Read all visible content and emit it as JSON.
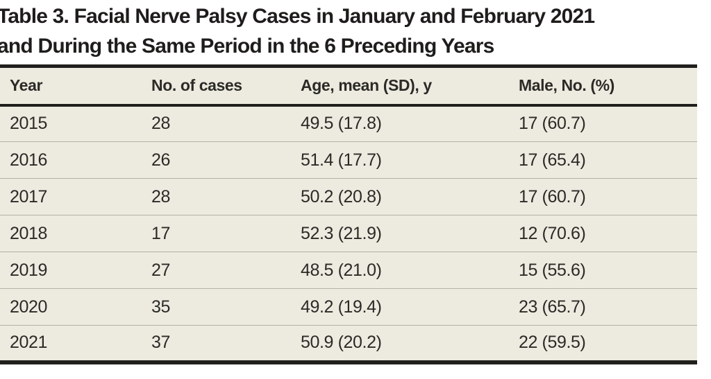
{
  "title": {
    "full": "Table 3. Facial Nerve Palsy Cases in January and February 2021 and During the Same Period in the 6 Preceding Years",
    "line1": "Table 3. Facial Nerve Palsy Cases in January and February 2021",
    "line2": "and During the Same Period in the 6 Preceding Years"
  },
  "table": {
    "columns": [
      "Year",
      "No. of cases",
      "Age, mean (SD), y",
      "Male, No. (%)"
    ],
    "rows": [
      [
        "2015",
        "28",
        "49.5 (17.8)",
        "17 (60.7)"
      ],
      [
        "2016",
        "26",
        "51.4 (17.7)",
        "17 (65.4)"
      ],
      [
        "2017",
        "28",
        "50.2 (20.8)",
        "17 (60.7)"
      ],
      [
        "2018",
        "17",
        "52.3 (21.9)",
        "12 (70.6)"
      ],
      [
        "2019",
        "27",
        "48.5 (21.0)",
        "15 (55.6)"
      ],
      [
        "2020",
        "35",
        "49.2 (19.4)",
        "23 (65.7)"
      ],
      [
        "2021",
        "37",
        "50.9 (20.2)",
        "22 (59.5)"
      ]
    ]
  },
  "colors": {
    "row_background": "#edebe0",
    "rule_black": "#201f1d",
    "row_separator": "#b2b1a7",
    "text": "#2b2a26",
    "page_background": "#ffffff"
  },
  "chart_data": {
    "type": "table",
    "title": "Table 3. Facial Nerve Palsy Cases in January and February 2021 and During the Same Period in the 6 Preceding Years",
    "columns": [
      "Year",
      "No. of cases",
      "Age, mean (SD), y",
      "Male, No. (%)"
    ],
    "rows": [
      [
        "2015",
        "28",
        "49.5 (17.8)",
        "17 (60.7)"
      ],
      [
        "2016",
        "26",
        "51.4 (17.7)",
        "17 (65.4)"
      ],
      [
        "2017",
        "28",
        "50.2 (20.8)",
        "17 (60.7)"
      ],
      [
        "2018",
        "17",
        "52.3 (21.9)",
        "12 (70.6)"
      ],
      [
        "2019",
        "27",
        "48.5 (21.0)",
        "15 (55.6)"
      ],
      [
        "2020",
        "35",
        "49.2 (19.4)",
        "23 (65.7)"
      ],
      [
        "2021",
        "37",
        "50.9 (20.2)",
        "22 (59.5)"
      ]
    ]
  }
}
